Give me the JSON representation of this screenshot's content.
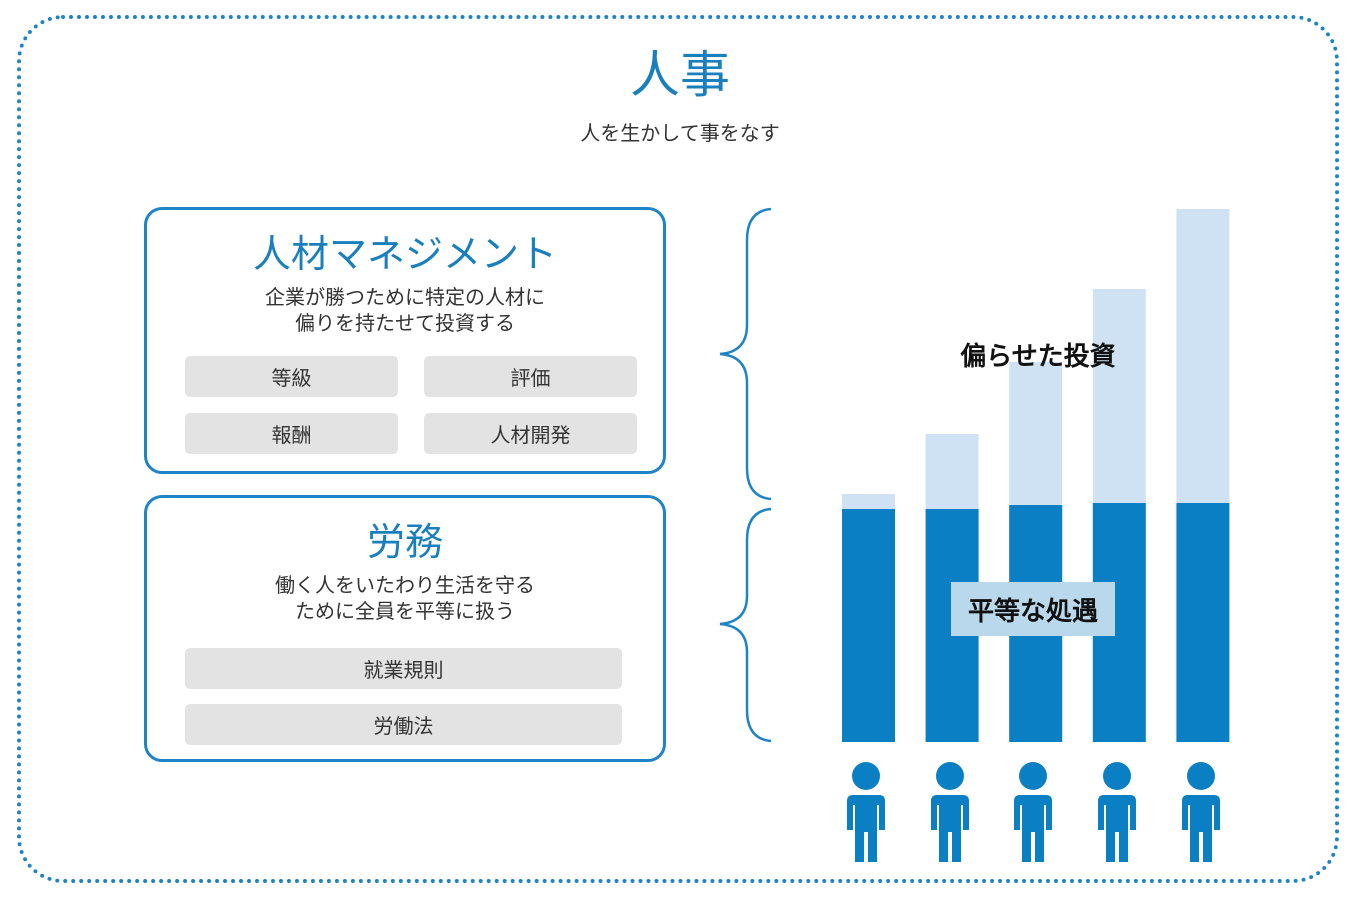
{
  "title": "人事",
  "subtitle": "人を生かして事をなす",
  "hr_management": {
    "heading": "人材マネジメント",
    "description_lines": [
      "企業が勝つために特定の人材に",
      "偏りを持たせて投資する"
    ],
    "tags": [
      "等級",
      "評価",
      "報酬",
      "人材開発"
    ]
  },
  "labor": {
    "heading": "労務",
    "description_lines": [
      "働く人をいたわり生活を守る",
      "ために全員を平等に扱う"
    ],
    "tags": [
      "就業規則",
      "労働法"
    ]
  },
  "chart_data": {
    "type": "bar",
    "stacked": true,
    "categories": [
      "",
      "",
      "",
      "",
      ""
    ],
    "series": [
      {
        "name": "平等な処遇",
        "values": [
          233,
          233,
          237,
          239,
          239
        ],
        "color": "#0a7fc4"
      },
      {
        "name": "偏らせた投資",
        "values": [
          15,
          75,
          143,
          214,
          294
        ],
        "color": "#cfe2f3"
      }
    ],
    "ylim": [
      0,
      540
    ],
    "annotations": [
      "偏らせた投資",
      "平等な処遇"
    ]
  },
  "colors": {
    "accent": "#1a7fbd",
    "bar_base": "#0a7fc4",
    "bar_top": "#cfe2f3",
    "person": "#0a7fc4",
    "tag_bg": "#e3e3e3"
  },
  "icons": {
    "person": "person-icon",
    "brace": "curly-brace-icon"
  }
}
